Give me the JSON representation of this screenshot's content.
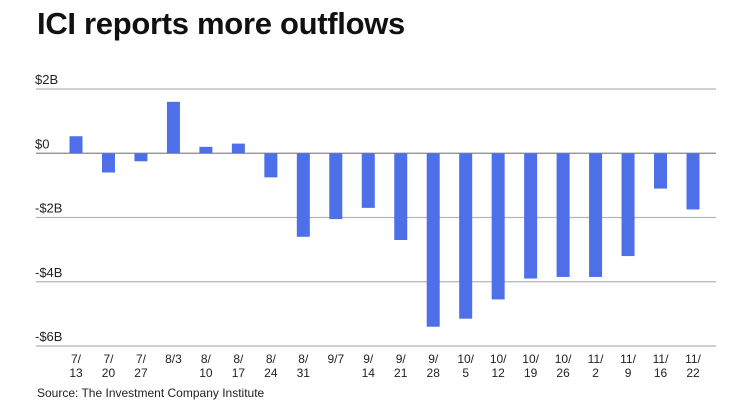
{
  "chart_data": {
    "type": "bar",
    "title": "ICI reports more outflows",
    "source": "Source: The Investment Company Institute",
    "xlabel": "",
    "ylabel": "",
    "ylim": [
      -6,
      2
    ],
    "yunit": "billion USD",
    "yticks": [
      2,
      0,
      -2,
      -4,
      -6
    ],
    "ytick_labels": [
      "$2B",
      "$0",
      "-$2B",
      "-$4B",
      "-$6B"
    ],
    "grid": true,
    "bar_color": "#4d6fe8",
    "categories": [
      "7/13",
      "7/20",
      "7/27",
      "8/3",
      "8/10",
      "8/17",
      "8/24",
      "8/31",
      "9/7",
      "9/14",
      "9/21",
      "9/28",
      "10/5",
      "10/12",
      "10/19",
      "10/26",
      "11/2",
      "11/9",
      "11/16",
      "11/22"
    ],
    "category_labels": [
      [
        "7/",
        "13"
      ],
      [
        "7/",
        "20"
      ],
      [
        "7/",
        "27"
      ],
      [
        "8/3",
        ""
      ],
      [
        "8/",
        "10"
      ],
      [
        "8/",
        "17"
      ],
      [
        "8/",
        "24"
      ],
      [
        "8/",
        "31"
      ],
      [
        "9/7",
        ""
      ],
      [
        "9/",
        "14"
      ],
      [
        "9/",
        "21"
      ],
      [
        "9/",
        "28"
      ],
      [
        "10/",
        "5"
      ],
      [
        "10/",
        "12"
      ],
      [
        "10/",
        "19"
      ],
      [
        "10/",
        "26"
      ],
      [
        "11/",
        "2"
      ],
      [
        "11/",
        "9"
      ],
      [
        "11/",
        "16"
      ],
      [
        "11/",
        "22"
      ]
    ],
    "values": [
      0.53,
      -0.6,
      -0.25,
      1.6,
      0.2,
      0.3,
      -0.75,
      -2.6,
      -2.05,
      -1.7,
      -2.7,
      -5.4,
      -5.15,
      -4.55,
      -3.9,
      -3.85,
      -3.85,
      -3.2,
      -1.1,
      -1.75
    ]
  }
}
